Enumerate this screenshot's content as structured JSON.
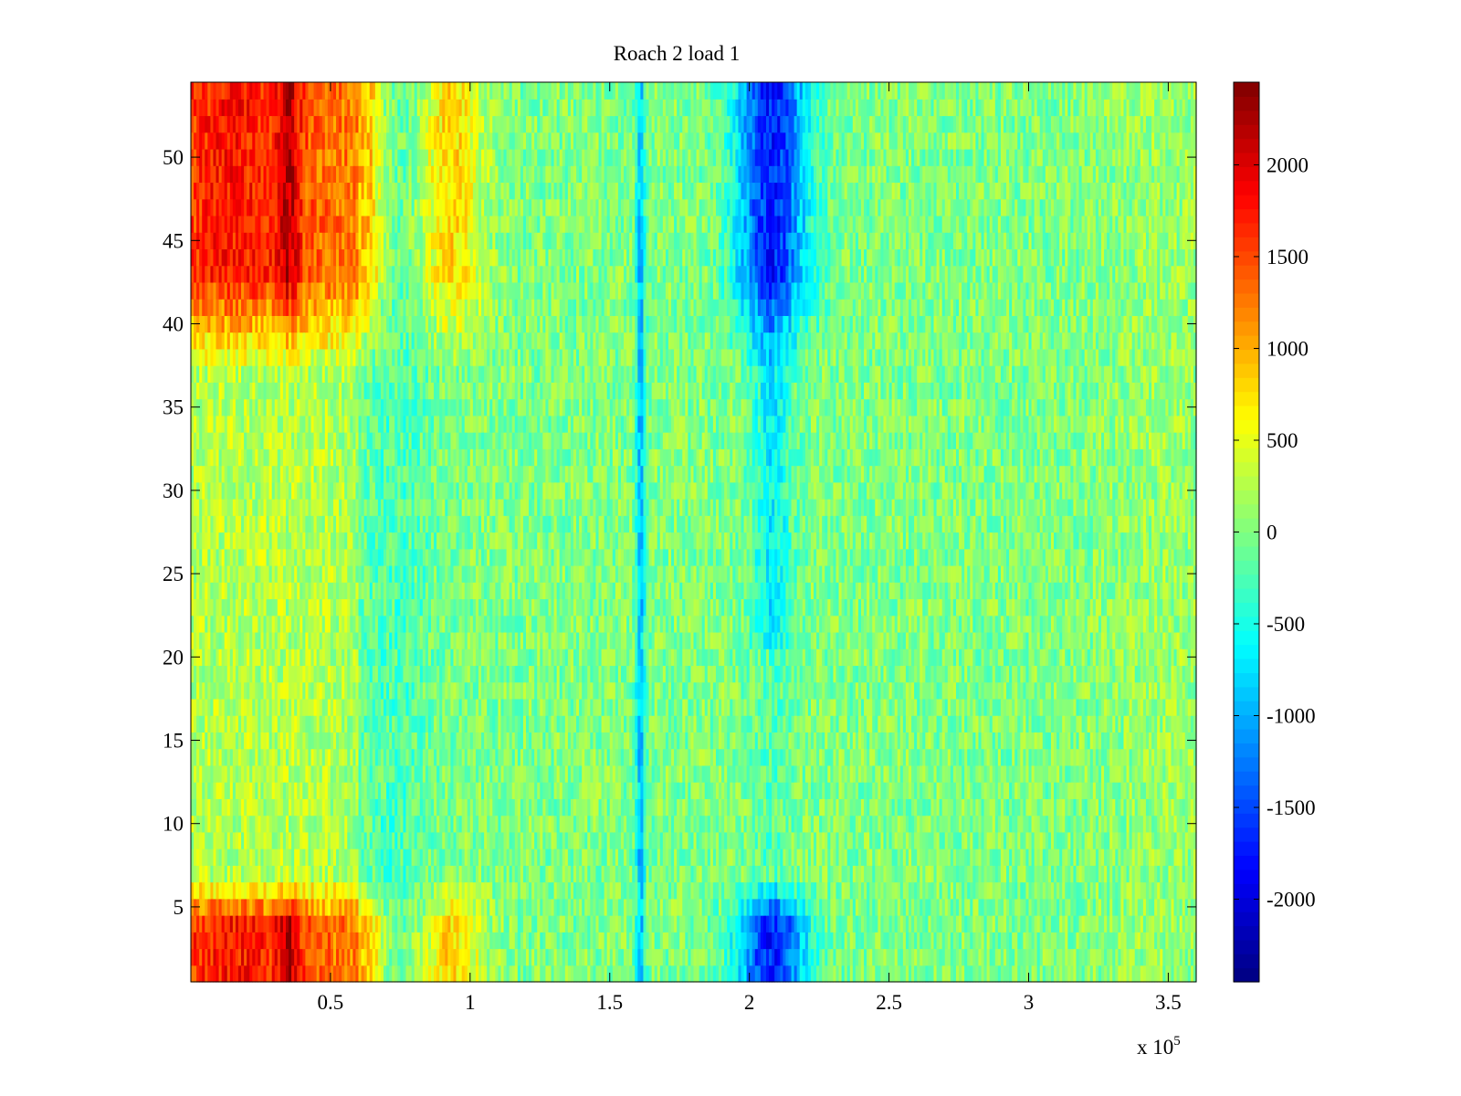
{
  "chart_data": {
    "type": "heatmap",
    "title": "Roach 2 load 1",
    "xlabel": "",
    "ylabel": "",
    "x_exponent_label": "x 10",
    "x_exponent_power": "5",
    "xlim": [
      0,
      360000
    ],
    "ylim": [
      0.5,
      54.5
    ],
    "x_ticks": [
      0.5,
      1,
      1.5,
      2,
      2.5,
      3,
      3.5
    ],
    "x_tick_labels": [
      "0.5",
      "1",
      "1.5",
      "2",
      "2.5",
      "3",
      "3.5"
    ],
    "x_tick_scale": 100000,
    "y_ticks": [
      5,
      10,
      15,
      20,
      25,
      30,
      35,
      40,
      45,
      50
    ],
    "y_tick_labels": [
      "5",
      "10",
      "15",
      "20",
      "25",
      "30",
      "35",
      "40",
      "45",
      "50"
    ],
    "rows": 54,
    "colormap": "jet",
    "colorbar": {
      "range": [
        -2450,
        2450
      ],
      "ticks": [
        2000,
        1500,
        1000,
        500,
        0,
        -500,
        -1000,
        -1500,
        -2000
      ],
      "tick_labels": [
        "2000",
        "1500",
        "1000",
        "500",
        "0",
        "-500",
        "-1000",
        "-1500",
        "-2000"
      ],
      "levels": 64
    },
    "grid": false,
    "features": [
      {
        "x_range": [
          0,
          65000
        ],
        "rows_top": [
          39,
          54
        ],
        "rows_bottom": [
          1,
          5
        ],
        "approx_value": 1600
      },
      {
        "x_range": [
          85000,
          105000
        ],
        "rows_top": [
          48,
          54
        ],
        "rows_bottom": [
          1,
          5
        ],
        "approx_value": 1000
      },
      {
        "x_range": [
          160000,
          162000
        ],
        "rows_all": [
          1,
          54
        ],
        "approx_value": -1000
      },
      {
        "x_range": [
          195000,
          225000
        ],
        "rows_top": [
          38,
          54
        ],
        "rows_bottom": [
          1,
          5
        ],
        "approx_value": -1700
      }
    ]
  },
  "colors": {
    "background": "#ffffff",
    "axes": "#000000"
  }
}
